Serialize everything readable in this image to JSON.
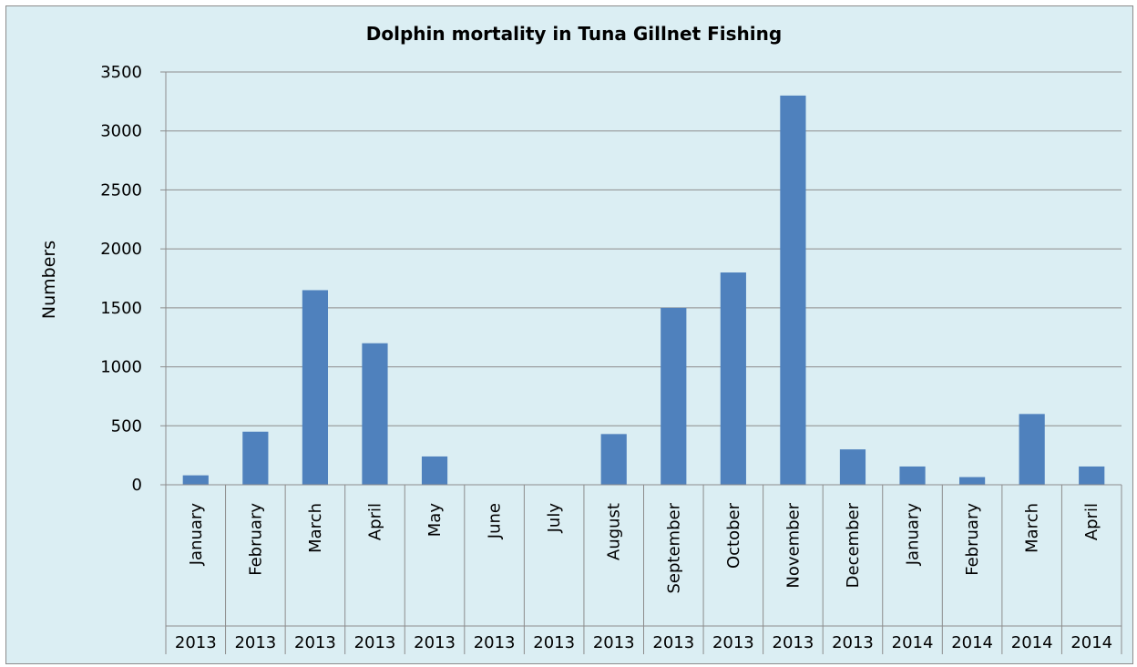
{
  "chart_data": {
    "type": "bar",
    "title": "Dolphin mortality in Tuna Gillnet Fishing",
    "xlabel": "",
    "ylabel": "Numbers",
    "ylim": [
      0,
      3500
    ],
    "yticks": [
      0,
      500,
      1000,
      1500,
      2000,
      2500,
      3000,
      3500
    ],
    "grid": true,
    "legend": "none",
    "bar_color": "#4f81bd",
    "background_color": "#dbeef3",
    "categories": [
      {
        "month": "January",
        "year": "2013"
      },
      {
        "month": "February",
        "year": "2013"
      },
      {
        "month": "March",
        "year": "2013"
      },
      {
        "month": "April",
        "year": "2013"
      },
      {
        "month": "May",
        "year": "2013"
      },
      {
        "month": "June",
        "year": "2013"
      },
      {
        "month": "July",
        "year": "2013"
      },
      {
        "month": "August",
        "year": "2013"
      },
      {
        "month": "September",
        "year": "2013"
      },
      {
        "month": "October",
        "year": "2013"
      },
      {
        "month": "November",
        "year": "2013"
      },
      {
        "month": "December",
        "year": "2013"
      },
      {
        "month": "January",
        "year": "2014"
      },
      {
        "month": "February",
        "year": "2014"
      },
      {
        "month": "March",
        "year": "2014"
      },
      {
        "month": "April",
        "year": "2014"
      }
    ],
    "values": [
      80,
      450,
      1650,
      1200,
      240,
      0,
      0,
      430,
      1500,
      1800,
      3300,
      300,
      155,
      65,
      600,
      155
    ]
  }
}
